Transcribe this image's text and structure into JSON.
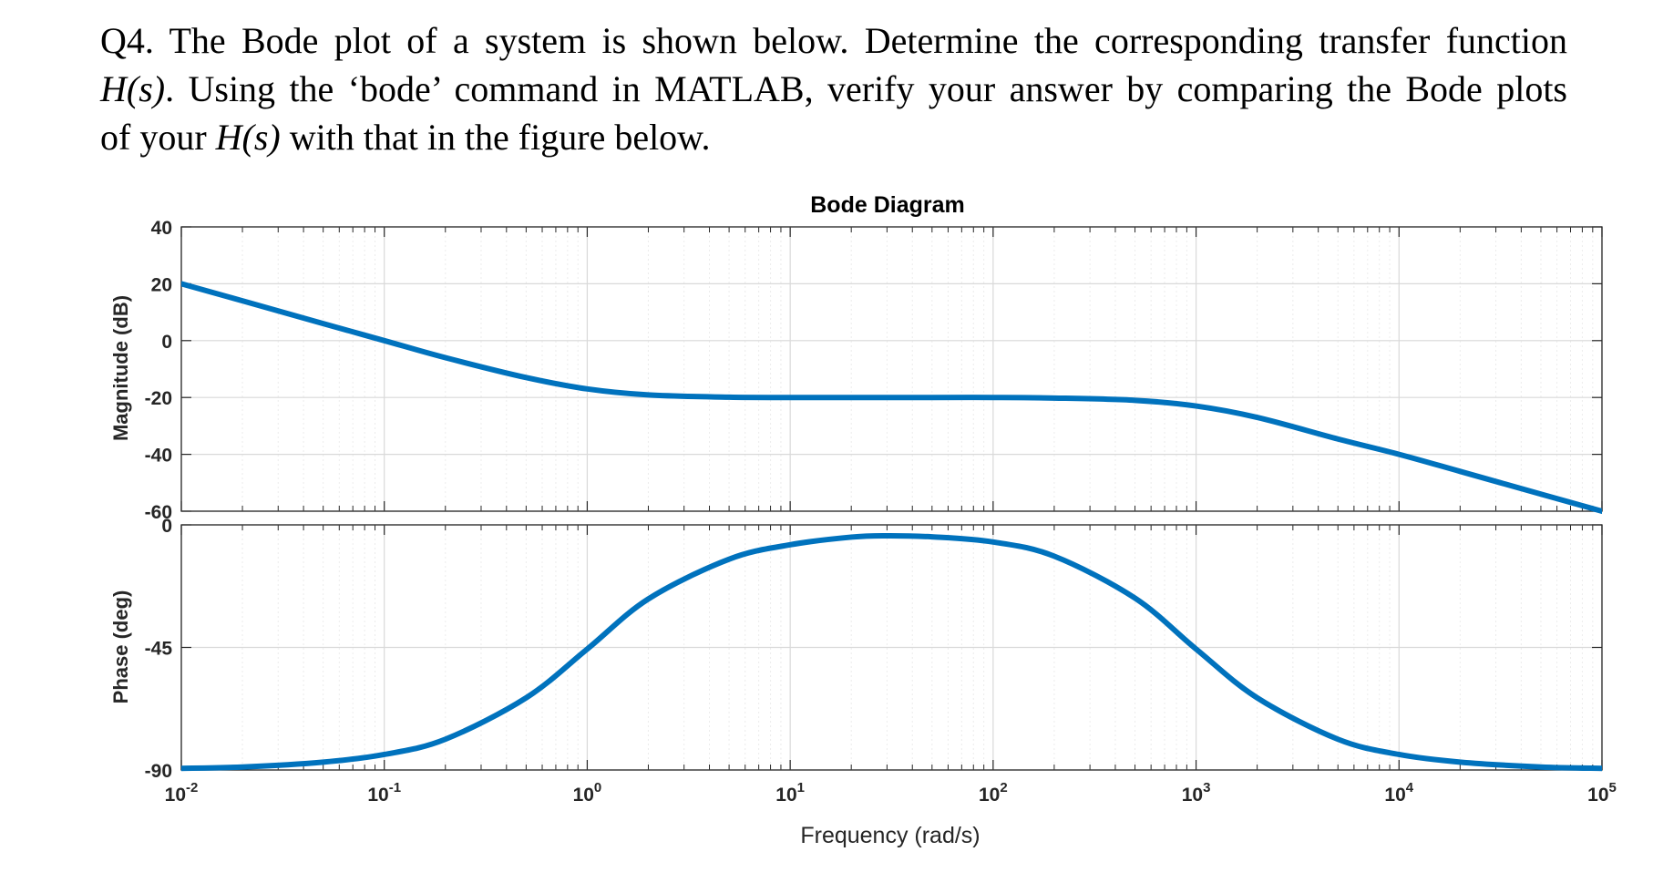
{
  "question": {
    "line1": "Q4. The Bode plot of a system is shown below. Determine the corresponding transfer function",
    "line2_italic": "H(s)",
    "line2_rest": ". Using the ‘bode’ command in MATLAB, verify your answer by comparing the Bode plots",
    "line3_start": "of your ",
    "line3_italic": "H(s)",
    "line3_end": " with that in the figure below."
  },
  "chart_data": {
    "type": "line",
    "title": "Bode Diagram",
    "xlabel": "Frequency  (rad/s)",
    "xscale": "log",
    "xlim": [
      0.01,
      100000
    ],
    "x_ticks": [
      {
        "base": "10",
        "exp": "-2"
      },
      {
        "base": "10",
        "exp": "-1"
      },
      {
        "base": "10",
        "exp": "0"
      },
      {
        "base": "10",
        "exp": "1"
      },
      {
        "base": "10",
        "exp": "2"
      },
      {
        "base": "10",
        "exp": "3"
      },
      {
        "base": "10",
        "exp": "4"
      },
      {
        "base": "10",
        "exp": "5"
      }
    ],
    "grid": true,
    "line_color": "#0072BD",
    "subplots": [
      {
        "name": "magnitude",
        "ylabel": "Magnitude (dB)",
        "ylim": [
          -60,
          40
        ],
        "y_ticks": [
          "40",
          "20",
          "0",
          "-20",
          "-40",
          "-60"
        ],
        "y_tick_values": [
          40,
          20,
          0,
          -20,
          -40,
          -60
        ],
        "x": [
          0.01,
          0.02,
          0.05,
          0.1,
          0.2,
          0.5,
          1,
          2,
          5,
          10,
          20,
          50,
          100,
          200,
          500,
          1000,
          2000,
          5000,
          10000,
          20000,
          50000,
          100000
        ],
        "y": [
          20,
          14,
          6,
          0,
          -6,
          -13,
          -17,
          -19.1,
          -19.9,
          -20,
          -20,
          -20,
          -20,
          -20.2,
          -21,
          -23,
          -27,
          -34.6,
          -40,
          -46,
          -54,
          -60
        ]
      },
      {
        "name": "phase",
        "ylabel": "Phase (deg)",
        "ylim": [
          -90,
          0
        ],
        "y_ticks": [
          "0",
          "-45",
          "-90"
        ],
        "y_tick_values": [
          0,
          -45,
          -90
        ],
        "x": [
          0.01,
          0.02,
          0.05,
          0.1,
          0.2,
          0.5,
          1,
          2,
          5,
          10,
          20,
          30,
          50,
          100,
          200,
          500,
          1000,
          2000,
          5000,
          10000,
          20000,
          50000,
          100000
        ],
        "y": [
          -89.4,
          -88.9,
          -87.1,
          -84.3,
          -78.7,
          -63.5,
          -45.6,
          -27.2,
          -12.6,
          -7.3,
          -4.5,
          -4.0,
          -4.4,
          -6.3,
          -11.5,
          -26.9,
          -45.6,
          -63.5,
          -78.7,
          -84.3,
          -87.1,
          -88.9,
          -89.4
        ]
      }
    ]
  }
}
